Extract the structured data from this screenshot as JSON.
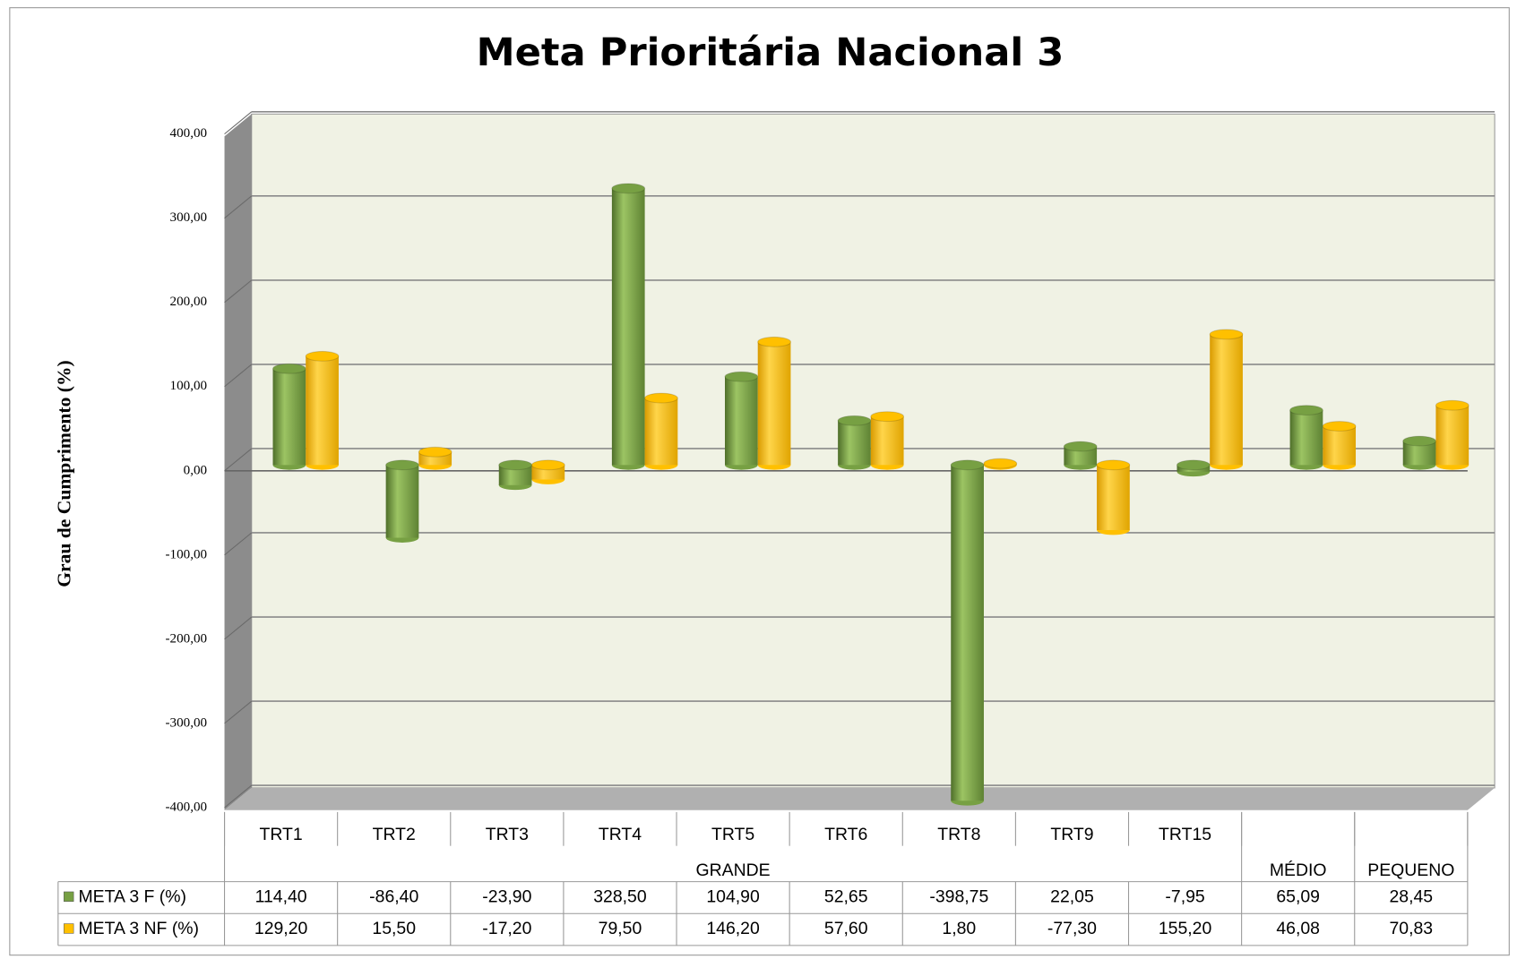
{
  "chart_data": {
    "type": "bar",
    "title": "Meta Prioritária Nacional 3",
    "y_label": "Grau de Cumprimento (%)",
    "categories": [
      "TRT1",
      "TRT2",
      "TRT3",
      "TRT4",
      "TRT5",
      "TRT6",
      "TRT8",
      "TRT9",
      "TRT15",
      null,
      null
    ],
    "group_labels": [
      "GRANDE",
      "GRANDE",
      "GRANDE",
      "GRANDE",
      "GRANDE",
      "GRANDE",
      "GRANDE",
      "GRANDE",
      "GRANDE",
      "MÉDIO",
      "PEQUENO"
    ],
    "series": [
      {
        "name": "META 3 F (%)",
        "color": "#77a043",
        "values": [
          114.4,
          -86.4,
          -23.9,
          328.5,
          104.9,
          52.65,
          -398.75,
          22.05,
          -7.95,
          65.09,
          28.45
        ],
        "value_labels": [
          "114,40",
          "-86,40",
          "-23,90",
          "328,50",
          "104,90",
          "52,65",
          "-398,75",
          "22,05",
          "-7,95",
          "65,09",
          "28,45"
        ]
      },
      {
        "name": "META 3 NF (%)",
        "color": "#ffc000",
        "values": [
          129.2,
          15.5,
          -17.2,
          79.5,
          146.2,
          57.6,
          1.8,
          -77.3,
          155.2,
          46.08,
          70.83
        ],
        "value_labels": [
          "129,20",
          "15,50",
          "-17,20",
          "79,50",
          "146,20",
          "57,60",
          "1,80",
          "-77,30",
          "155,20",
          "46,08",
          "70,83"
        ]
      }
    ],
    "ylim": [
      -400,
      400
    ],
    "yticks": [
      {
        "value": -400,
        "label": "-400,00"
      },
      {
        "value": -300,
        "label": "-300,00"
      },
      {
        "value": -200,
        "label": "-200,00"
      },
      {
        "value": -100,
        "label": "-100,00"
      },
      {
        "value": 0,
        "label": "0,00"
      },
      {
        "value": 100,
        "label": "100,00"
      },
      {
        "value": 200,
        "label": "200,00"
      },
      {
        "value": 300,
        "label": "300,00"
      },
      {
        "value": 400,
        "label": "400,00"
      }
    ],
    "grid": true
  }
}
